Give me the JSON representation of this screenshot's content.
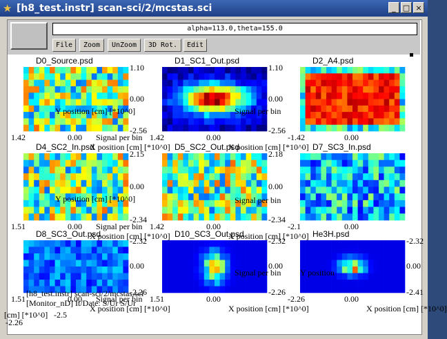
{
  "window": {
    "title": "[h8_test.instr] scan-sci/2/mcstas.sci",
    "buttons": [
      "_",
      "□",
      "×"
    ]
  },
  "toolbar": {
    "param_value": "alpha=113.0,theta=155.0",
    "file_label": "File",
    "zoom_label": "Zoom",
    "unzoom_label": "UnZoom",
    "rot_label": "3D Rot.",
    "edit_label": "Edit"
  },
  "panels": [
    {
      "title": "D0_Source.psd",
      "seed": 3,
      "pattern": "uniform",
      "ticks": [
        "1.10",
        "0.00",
        "-2.56",
        "1.42",
        "0.00"
      ],
      "ylabel": "Y position [cm] [*10^0]",
      "xlabel": "X position [cm] [*10^0]",
      "siglabel": "Signal per bin"
    },
    {
      "title": "D1_SC1_Out.psd",
      "seed": 7,
      "pattern": "blob",
      "ticks": [
        "1.10",
        "0.00",
        "-2.56",
        "1.42",
        "0.00"
      ],
      "ylabel": "",
      "xlabel": "X position [cm] [*10^0]",
      "siglabel": "Signal per bin"
    },
    {
      "title": "D2_A4.psd",
      "seed": 11,
      "pattern": "rect",
      "ticks": [
        "",
        "",
        "",
        "-1.42",
        "0.00"
      ],
      "ylabel": "",
      "xlabel": "",
      "siglabel": ""
    },
    {
      "title": "D4_SC2_In.psd",
      "seed": 13,
      "pattern": "uniform",
      "ticks": [
        "2.15",
        "0.00",
        "-2.34",
        "1.51",
        "0.00"
      ],
      "ylabel": "Y position [cm] [*10^0]",
      "xlabel": "X position [cm] [*10^0]",
      "siglabel": "Signal per bin"
    },
    {
      "title": "D5_SC2_Out.psd",
      "seed": 17,
      "pattern": "uniform",
      "ticks": [
        "2.18",
        "0.00",
        "-2.34",
        "1.42",
        "0.00"
      ],
      "ylabel": "",
      "xlabel": "X position [cm] [*10^0]",
      "siglabel": "Signal per bin"
    },
    {
      "title": "D7_SC3_In.psd",
      "seed": 19,
      "pattern": "cool",
      "ticks": [
        "",
        "",
        "",
        "-2.1",
        "0.00"
      ],
      "ylabel": "",
      "xlabel": "",
      "siglabel": ""
    },
    {
      "title": "D8_SC3_Out.psd",
      "seed": 23,
      "pattern": "dark",
      "ticks": [
        "-2.32",
        "0.00",
        "-2.26",
        "1.51",
        "0.00"
      ],
      "ylabel": "",
      "xlabel": "X position [cm] [*10^0]",
      "siglabel": "Signal per bin"
    },
    {
      "title": "D10_SC3_Out.psd",
      "seed": 29,
      "pattern": "sparse",
      "ticks": [
        "-2.32",
        "0.00",
        "-2.26",
        "1.51",
        "0.00"
      ],
      "ylabel": "",
      "xlabel": "X position [cm] [*10^0]",
      "siglabel": "Signal per bin"
    },
    {
      "title": "He3H.psd",
      "seed": 31,
      "pattern": "spot",
      "ticks": [
        "-2.32",
        "0.00",
        "-2.41",
        "-2.26",
        "0.00"
      ],
      "ylabel": "",
      "xlabel": "X position [cm] [*10^0]",
      "siglabel": "Y position"
    }
  ],
  "status": {
    "line1": "[h8_test.instr] scan-sci/2/mcstas.sci",
    "line2": "[Monitor_nD] It/Date: S/Ur S/Ur",
    "ymark": "[cm] [*10^0]",
    "xval1": "-2.26",
    "xval2": "-2.5"
  },
  "colors": {
    "titlebar": "#2a52a0",
    "plotbg": "#ffffff",
    "chrome": "#d4d0c8"
  }
}
